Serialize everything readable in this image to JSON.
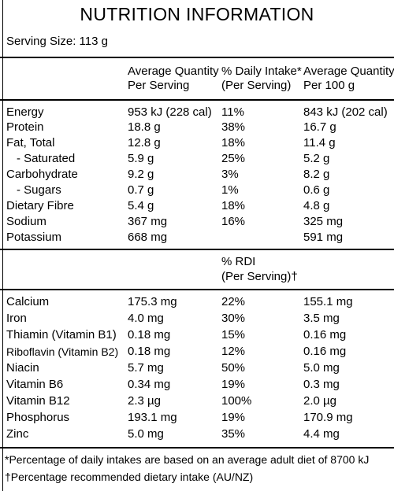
{
  "title": "NUTRITION INFORMATION",
  "serving_size": "Serving Size: 113 g",
  "headers": {
    "avg_serving_1": "Average Quantity",
    "avg_serving_2": "Per Serving",
    "daily_1": "% Daily Intake*",
    "daily_2": "(Per Serving)",
    "avg_100_1": "Average Quantity",
    "avg_100_2": "Per 100 g"
  },
  "macros": [
    {
      "name": "Energy",
      "per_serving": "953 kJ (228 cal)",
      "daily": "11%",
      "per_100g": "843 kJ (202 cal)"
    },
    {
      "name": "Protein",
      "per_serving": "18.8 g",
      "daily": "38%",
      "per_100g": "16.7 g"
    },
    {
      "name": "Fat, Total",
      "per_serving": "12.8 g",
      "daily": "18%",
      "per_100g": "11.4 g"
    },
    {
      "name": "- Saturated",
      "per_serving": "5.9 g",
      "daily": "25%",
      "per_100g": "5.2 g"
    },
    {
      "name": "Carbohydrate",
      "per_serving": "9.2 g",
      "daily": "3%",
      "per_100g": "8.2 g"
    },
    {
      "name": "- Sugars",
      "per_serving": "0.7 g",
      "daily": "1%",
      "per_100g": "0.6 g"
    },
    {
      "name": "Dietary Fibre",
      "per_serving": "5.4 g",
      "daily": "18%",
      "per_100g": "4.8 g"
    },
    {
      "name": "Sodium",
      "per_serving": "367 mg",
      "daily": "16%",
      "per_100g": "325 mg"
    },
    {
      "name": "Potassium",
      "per_serving": "668 mg",
      "daily": "",
      "per_100g": "591 mg"
    }
  ],
  "rdi_header": {
    "line1": "% RDI",
    "line2": "(Per Serving)†"
  },
  "micros": [
    {
      "name": "Calcium",
      "per_serving": "175.3 mg",
      "rdi": "22%",
      "per_100g": "155.1 mg"
    },
    {
      "name": "Iron",
      "per_serving": "4.0 mg",
      "rdi": "30%",
      "per_100g": "3.5 mg"
    },
    {
      "name": "Thiamin (Vitamin B1)",
      "per_serving": "0.18 mg",
      "rdi": "15%",
      "per_100g": "0.16 mg"
    },
    {
      "name": "Riboflavin (Vitamin B2)",
      "per_serving": "0.18 mg",
      "rdi": "12%",
      "per_100g": "0.16 mg"
    },
    {
      "name": "Niacin",
      "per_serving": "5.7 mg",
      "rdi": "50%",
      "per_100g": "5.0 mg"
    },
    {
      "name": "Vitamin B6",
      "per_serving": "0.34 mg",
      "rdi": "19%",
      "per_100g": "0.3 mg"
    },
    {
      "name": "Vitamin B12",
      "per_serving": "2.3 µg",
      "rdi": "100%",
      "per_100g": "2.0 µg"
    },
    {
      "name": "Phosphorus",
      "per_serving": "193.1 mg",
      "rdi": "19%",
      "per_100g": "170.9 mg"
    },
    {
      "name": "Zinc",
      "per_serving": "5.0 mg",
      "rdi": "35%",
      "per_100g": "4.4 mg"
    }
  ],
  "footnotes": {
    "daily": "*Percentage of daily intakes are based on an average adult diet of 8700 kJ",
    "rdi": "†Percentage recommended dietary intake (AU/NZ)"
  }
}
